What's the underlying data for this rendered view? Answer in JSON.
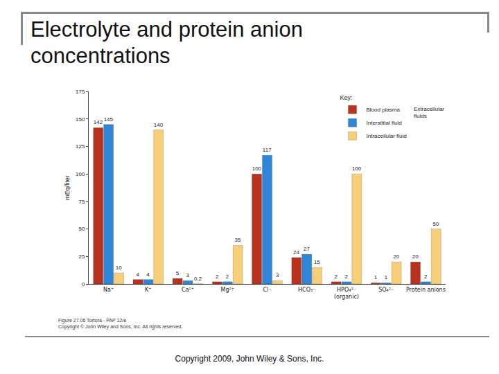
{
  "chart_data": {
    "type": "bar",
    "title": "Electrolyte and protein anion concentrations",
    "y_label": "mEq/liter",
    "categories": [
      "Na⁺",
      "K⁺",
      "Ca²⁺",
      "Mg²⁺",
      "Cl⁻",
      "HCO₃⁻",
      "HPO₄²⁻ (organic)",
      "SO₄²⁻",
      "Protein anions"
    ],
    "series": [
      {
        "name": "Blood plasma",
        "color": "#b8321d",
        "values": [
          142,
          4,
          5,
          2,
          100,
          24,
          2,
          1,
          20
        ]
      },
      {
        "name": "Interstitial fluid",
        "color": "#2f86d8",
        "values": [
          145,
          4,
          3,
          2,
          117,
          27,
          2,
          1,
          2
        ]
      },
      {
        "name": "Intracellular fluid",
        "color": "#f8cf79",
        "values": [
          10,
          140,
          0.2,
          35,
          3,
          15,
          100,
          20,
          50
        ]
      }
    ],
    "ylim": [
      0,
      175
    ],
    "yticks": [
      0,
      25,
      50,
      75,
      100,
      125,
      150,
      175
    ],
    "grid": false,
    "data_labels": true,
    "legend": "upper right",
    "legend_title": "Key:",
    "annotations": [
      "Extracellular fluids"
    ],
    "caption": [
      "Figure 27.06 Tortora - PAP 12/e",
      "Copyright © John Wiley and Sons, Inc. All rights reserved."
    ]
  },
  "footer": "Copyright 2009, John Wiley & Sons, Inc."
}
